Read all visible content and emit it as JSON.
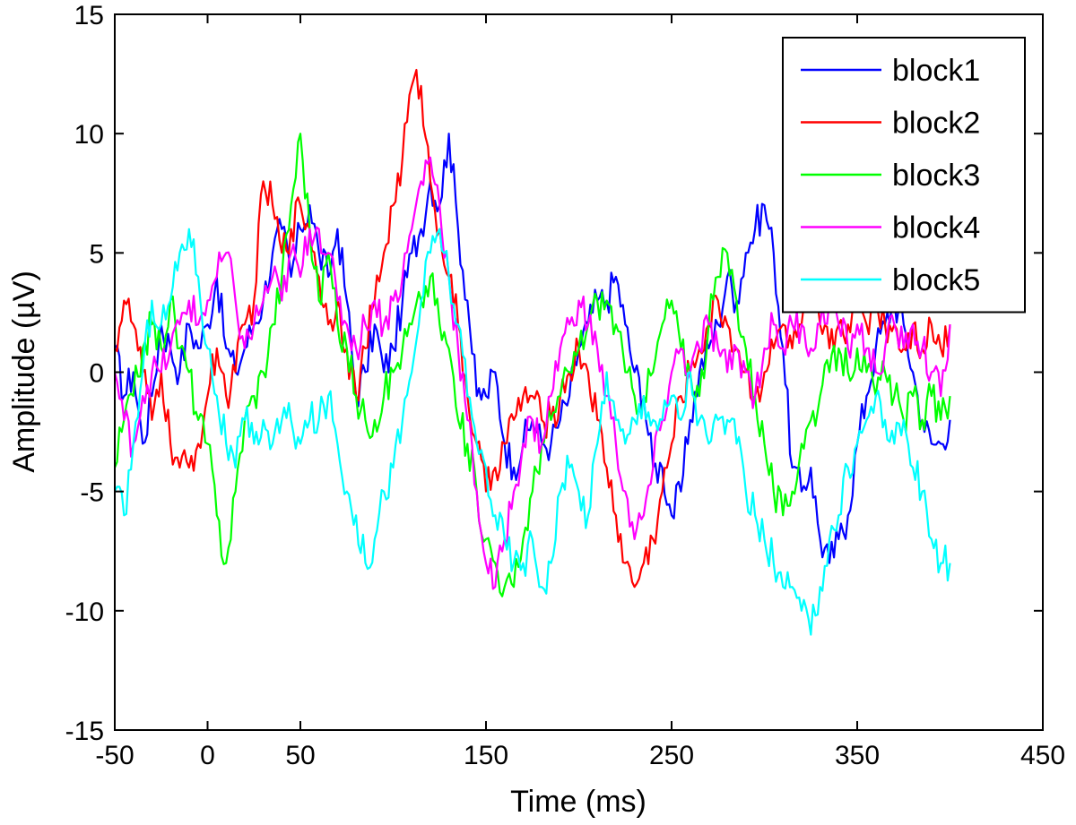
{
  "chart_data": {
    "type": "line",
    "title": "",
    "xlabel": "Time (ms)",
    "ylabel": "Amplitude (µV)",
    "xlim": [
      -50,
      450
    ],
    "ylim": [
      -15,
      15
    ],
    "xticks": [
      -50,
      0,
      50,
      150,
      250,
      350,
      450
    ],
    "yticks": [
      -15,
      -10,
      -5,
      0,
      5,
      10,
      15
    ],
    "legend_position": "top-right",
    "series": [
      {
        "name": "block1",
        "color": "#0000ff",
        "x": [
          -50,
          -45,
          -40,
          -35,
          -30,
          -25,
          -20,
          -15,
          -10,
          -5,
          0,
          5,
          10,
          15,
          20,
          25,
          30,
          35,
          40,
          45,
          50,
          55,
          60,
          65,
          70,
          75,
          80,
          85,
          90,
          95,
          100,
          105,
          110,
          115,
          120,
          125,
          130,
          135,
          140,
          145,
          150,
          155,
          160,
          165,
          170,
          175,
          180,
          185,
          190,
          195,
          200,
          205,
          210,
          215,
          220,
          225,
          230,
          235,
          240,
          245,
          250,
          255,
          260,
          265,
          270,
          275,
          280,
          285,
          290,
          295,
          300,
          305,
          310,
          315,
          320,
          325,
          330,
          335,
          340,
          345,
          350,
          355,
          360,
          365,
          370,
          375,
          380,
          385,
          390,
          395,
          400
        ],
        "y": [
          1,
          -1,
          0,
          -3,
          -1,
          2,
          1,
          0,
          2,
          1,
          2,
          4,
          1,
          0,
          1,
          2,
          3,
          5,
          6,
          4,
          6,
          7,
          5,
          4,
          6,
          3,
          -1,
          0,
          2,
          0,
          1,
          3,
          5,
          6,
          8,
          7,
          10,
          6,
          3,
          -1,
          -1,
          0,
          -3,
          -4,
          -3,
          -2,
          -3,
          -3,
          -2,
          -1,
          1,
          2,
          3,
          3,
          4,
          2,
          0,
          -1,
          -4,
          -4,
          -6,
          -5,
          -2,
          0,
          1,
          2,
          4,
          3,
          5,
          6,
          7,
          5,
          1,
          -4,
          -5,
          -4,
          -7,
          -8,
          -7,
          -6,
          -3,
          -1,
          1,
          2,
          3,
          2,
          0,
          -2,
          -3,
          -3,
          -2
        ],
        "smooth": true
      },
      {
        "name": "block2",
        "color": "#ff0000",
        "x": [
          -50,
          -45,
          -40,
          -35,
          -30,
          -25,
          -20,
          -15,
          -10,
          -5,
          0,
          5,
          10,
          15,
          20,
          25,
          30,
          35,
          40,
          45,
          50,
          55,
          60,
          65,
          70,
          75,
          80,
          85,
          90,
          95,
          100,
          105,
          110,
          115,
          120,
          125,
          130,
          135,
          140,
          145,
          150,
          155,
          160,
          165,
          170,
          175,
          180,
          185,
          190,
          195,
          200,
          205,
          210,
          215,
          220,
          225,
          230,
          235,
          240,
          245,
          250,
          255,
          260,
          265,
          270,
          275,
          280,
          285,
          290,
          295,
          300,
          305,
          310,
          315,
          320,
          325,
          330,
          335,
          340,
          345,
          350,
          355,
          360,
          365,
          370,
          375,
          380,
          385,
          390,
          395,
          400
        ],
        "y": [
          1,
          3,
          2,
          0,
          -2,
          0,
          -3,
          -4,
          -4,
          -3,
          -1,
          1,
          -1,
          0,
          2,
          3,
          8,
          7,
          5,
          6,
          7,
          6,
          4,
          2,
          3,
          1,
          -1,
          1,
          3,
          5,
          7,
          9,
          12,
          12,
          8,
          6,
          4,
          2,
          -1,
          -3,
          -5,
          -4,
          -3,
          -2,
          -1,
          -1,
          -2,
          -2,
          -1,
          0,
          1,
          0,
          -2,
          -4,
          -6,
          -8,
          -9,
          -8,
          -7,
          -5,
          -3,
          -1,
          0,
          1,
          2,
          3,
          2,
          1,
          0,
          -1,
          0,
          1,
          2,
          1,
          2,
          3,
          2,
          1,
          2,
          2,
          3,
          2,
          3,
          2,
          2,
          1,
          2,
          1,
          2,
          1,
          2
        ],
        "smooth": true
      },
      {
        "name": "block3",
        "color": "#00ff00",
        "x": [
          -50,
          -45,
          -40,
          -35,
          -30,
          -25,
          -20,
          -15,
          -10,
          -5,
          0,
          5,
          10,
          15,
          20,
          25,
          30,
          35,
          40,
          45,
          50,
          55,
          60,
          65,
          70,
          75,
          80,
          85,
          90,
          95,
          100,
          105,
          110,
          115,
          120,
          125,
          130,
          135,
          140,
          145,
          150,
          155,
          160,
          165,
          170,
          175,
          180,
          185,
          190,
          195,
          200,
          205,
          210,
          215,
          220,
          225,
          230,
          235,
          240,
          245,
          250,
          255,
          260,
          265,
          270,
          275,
          280,
          285,
          290,
          295,
          300,
          305,
          310,
          315,
          320,
          325,
          330,
          335,
          340,
          345,
          350,
          355,
          360,
          365,
          370,
          375,
          380,
          385,
          390,
          395,
          400
        ],
        "y": [
          -4,
          -2,
          -1,
          1,
          2,
          1,
          3,
          1,
          0,
          -2,
          -3,
          -6,
          -8,
          -5,
          -2,
          -1,
          0,
          2,
          4,
          7,
          10,
          6,
          3,
          5,
          2,
          1,
          -1,
          -2,
          -2,
          -1,
          0,
          1,
          2,
          3,
          4,
          2,
          1,
          -2,
          -3,
          -5,
          -7,
          -8,
          -9,
          -9,
          -7,
          -5,
          -3,
          -2,
          -1,
          0,
          1,
          2,
          3,
          3,
          2,
          0,
          -1,
          -1,
          0,
          2,
          3,
          1,
          0,
          -1,
          2,
          4,
          5,
          3,
          1,
          -1,
          -3,
          -5,
          -6,
          -5,
          -3,
          -2,
          -1,
          0,
          1,
          0,
          1,
          0,
          -1,
          0,
          -1,
          -2,
          -1,
          -2,
          -1,
          -2,
          -1
        ],
        "smooth": true
      },
      {
        "name": "block4",
        "color": "#ff00ff",
        "x": [
          -50,
          -45,
          -40,
          -35,
          -30,
          -25,
          -20,
          -15,
          -10,
          -5,
          0,
          5,
          10,
          15,
          20,
          25,
          30,
          35,
          40,
          45,
          50,
          55,
          60,
          65,
          70,
          75,
          80,
          85,
          90,
          95,
          100,
          105,
          110,
          115,
          120,
          125,
          130,
          135,
          140,
          145,
          150,
          155,
          160,
          165,
          170,
          175,
          180,
          185,
          190,
          195,
          200,
          205,
          210,
          215,
          220,
          225,
          230,
          235,
          240,
          245,
          250,
          255,
          260,
          265,
          270,
          275,
          280,
          285,
          290,
          295,
          300,
          305,
          310,
          315,
          320,
          325,
          330,
          335,
          340,
          345,
          350,
          355,
          360,
          365,
          370,
          375,
          380,
          385,
          390,
          395,
          400
        ],
        "y": [
          0,
          -2,
          -3,
          -1,
          0,
          0,
          1,
          2,
          3,
          2,
          3,
          4,
          5,
          3,
          1,
          2,
          3,
          4,
          3,
          5,
          4,
          6,
          6,
          5,
          3,
          2,
          1,
          2,
          3,
          2,
          3,
          4,
          6,
          8,
          9,
          7,
          4,
          1,
          -2,
          -5,
          -8,
          -9,
          -7,
          -5,
          -3,
          -2,
          -3,
          -1,
          1,
          2,
          3,
          2,
          1,
          -1,
          -3,
          -5,
          -7,
          -6,
          -4,
          -2,
          0,
          1,
          0,
          1,
          2,
          1,
          0,
          1,
          0,
          -1,
          1,
          2,
          1,
          2,
          2,
          1,
          2,
          3,
          2,
          1,
          2,
          1,
          0,
          1,
          2,
          1,
          2,
          1,
          0,
          -1,
          2
        ],
        "smooth": true
      },
      {
        "name": "block5",
        "color": "#00ffff",
        "x": [
          -50,
          -45,
          -40,
          -35,
          -30,
          -25,
          -20,
          -15,
          -10,
          -5,
          0,
          5,
          10,
          15,
          20,
          25,
          30,
          35,
          40,
          45,
          50,
          55,
          60,
          65,
          70,
          75,
          80,
          85,
          90,
          95,
          100,
          105,
          110,
          115,
          120,
          125,
          130,
          135,
          140,
          145,
          150,
          155,
          160,
          165,
          170,
          175,
          180,
          185,
          190,
          195,
          200,
          205,
          210,
          215,
          220,
          225,
          230,
          235,
          240,
          245,
          250,
          255,
          260,
          265,
          270,
          275,
          280,
          285,
          290,
          295,
          300,
          305,
          310,
          315,
          320,
          325,
          330,
          335,
          340,
          345,
          350,
          355,
          360,
          365,
          370,
          375,
          380,
          385,
          390,
          395,
          400
        ],
        "y": [
          -5,
          -6,
          -3,
          0,
          3,
          2,
          3,
          5,
          6,
          4,
          1,
          -1,
          -3,
          -4,
          -2,
          -3,
          -2,
          -3,
          -2,
          -2,
          -3,
          -2,
          -2,
          -1,
          -3,
          -5,
          -6,
          -8,
          -7,
          -5,
          -4,
          -2,
          0,
          3,
          5,
          6,
          4,
          2,
          -1,
          -3,
          -4,
          -6,
          -7,
          -8,
          -8,
          -7,
          -9,
          -8,
          -5,
          -4,
          -5,
          -6,
          -3,
          0,
          -2,
          -3,
          -2,
          -1,
          -2,
          -2,
          -1,
          -2,
          0,
          -2,
          -3,
          -2,
          -2,
          -3,
          -5,
          -6,
          -7,
          -8,
          -9,
          -9,
          -10,
          -11,
          -9,
          -7,
          -6,
          -4,
          -3,
          -2,
          -1,
          -2,
          -3,
          -2,
          -4,
          -5,
          -7,
          -8,
          -8
        ],
        "smooth": true
      }
    ]
  }
}
